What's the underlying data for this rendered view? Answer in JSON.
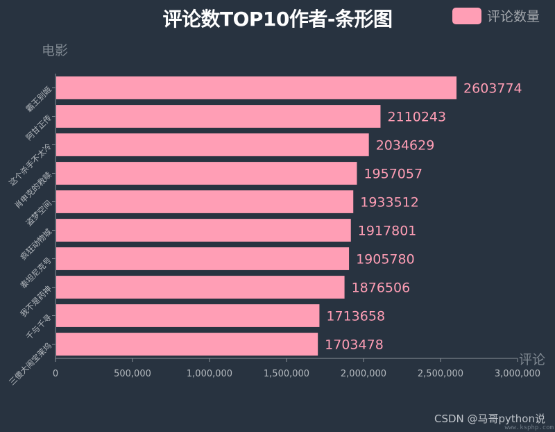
{
  "chart_data": {
    "type": "bar",
    "orientation": "horizontal",
    "title": "评论数TOP10作者-条形图",
    "ylabel": "电影",
    "xlabel": "评论",
    "legend": [
      "评论数量"
    ],
    "legend_position": "top-right",
    "categories": [
      "霸王别姬",
      "阿甘正传",
      "这个杀手不太冷",
      "肖申克的救赎",
      "盗梦空间",
      "疯狂动物城",
      "泰坦尼克号",
      "我不是药神",
      "千与千寻",
      "三傻大闹宝莱坞"
    ],
    "series": [
      {
        "name": "评论数量",
        "values": [
          2603774,
          2110243,
          2034629,
          1957057,
          1933512,
          1917801,
          1905780,
          1876506,
          1713658,
          1703478
        ]
      }
    ],
    "xlim": [
      0,
      3000000
    ],
    "xticks": [
      0,
      500000,
      1000000,
      1500000,
      2000000,
      2500000,
      3000000
    ],
    "xtick_labels": [
      "0",
      "500,000",
      "1,000,000",
      "1,500,000",
      "2,000,000",
      "2,500,000",
      "3,000,000"
    ],
    "grid": false,
    "bar_color": "#ff9eb5",
    "label_color": "#ff9eb5",
    "axis_color": "#8a9099",
    "tick_label_color": "#b4b9be",
    "background": "#283340"
  },
  "watermark": "CSDN @马哥python说",
  "site_url": "www.ksphp.com"
}
